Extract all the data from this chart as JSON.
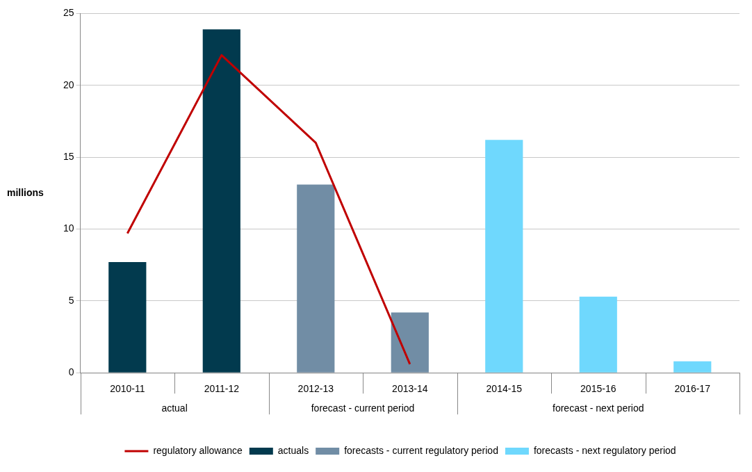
{
  "chart_data": {
    "type": "bar",
    "ylabel": "millions",
    "categories": [
      "2010-11",
      "2011-12",
      "2012-13",
      "2013-14",
      "2014-15",
      "2015-16",
      "2016-17"
    ],
    "series": [
      {
        "name": "actuals",
        "color": "#023a4e",
        "values": [
          7.7,
          23.9,
          null,
          null,
          null,
          null,
          null
        ]
      },
      {
        "name": "forecasts - current regulatory period",
        "color": "#718da5",
        "values": [
          null,
          null,
          13.1,
          4.2,
          null,
          null,
          null
        ]
      },
      {
        "name": "forecasts - next regulatory period",
        "color": "#6fd8fd",
        "values": [
          null,
          null,
          null,
          null,
          16.2,
          5.3,
          0.8
        ]
      },
      {
        "name": "regulatory allowance",
        "type": "line",
        "color": "#c00000",
        "values": [
          9.7,
          22.1,
          16.0,
          0.6,
          null,
          null,
          null
        ]
      }
    ],
    "ylim": [
      0,
      25
    ],
    "yticks": [
      0,
      5,
      10,
      15,
      20,
      25
    ],
    "grid": "y",
    "legend": "bottom",
    "annotations": [
      "actual",
      "forecast - current period",
      "forecast - next period"
    ]
  }
}
